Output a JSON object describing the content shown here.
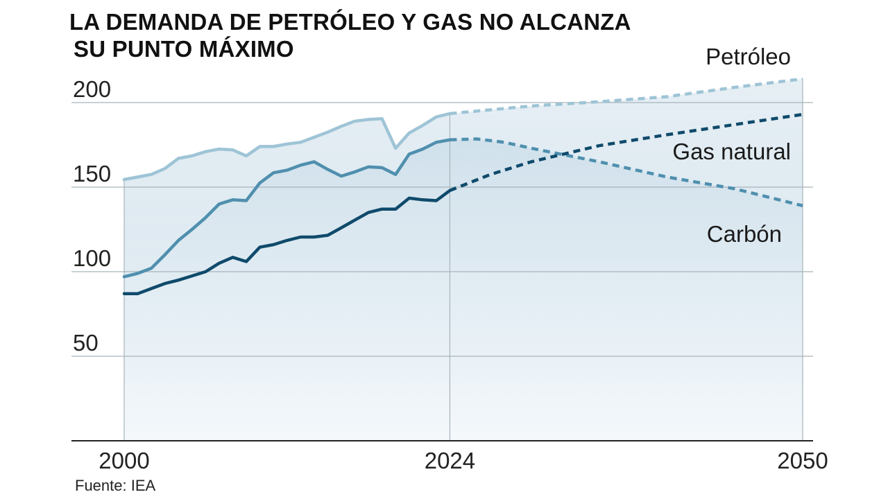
{
  "title_line1": "LA DEMANDA DE PETRÓLEO Y GAS NO ALCANZA",
  "title_line2": "SU PUNTO MÁXIMO",
  "source": "Fuente: IEA",
  "colors": {
    "petroleo": "#9ec4d6",
    "gas": "#4f8fae",
    "carbon": "#0f4a6b",
    "grid": "#a7b3bb",
    "axis": "#222222",
    "fill_top": "#c9dce8",
    "fill_bottom": "#f4f8fb"
  },
  "chart_data": {
    "type": "line",
    "title": "LA DEMANDA DE PETRÓLEO Y GAS NO ALCANZA SU PUNTO MÁXIMO",
    "xlabel": "",
    "ylabel": "",
    "xlim": [
      2000,
      2050
    ],
    "ylim": [
      0,
      200
    ],
    "yticks": [
      50,
      100,
      150,
      200
    ],
    "xticks": [
      2000,
      2024,
      2050
    ],
    "grid": true,
    "projection_start": 2024,
    "series": [
      {
        "name": "Petróleo",
        "key": "petroleo",
        "x": [
          2000,
          2001,
          2002,
          2003,
          2004,
          2005,
          2006,
          2007,
          2008,
          2009,
          2010,
          2011,
          2012,
          2013,
          2014,
          2015,
          2016,
          2017,
          2018,
          2019,
          2020,
          2021,
          2022,
          2023,
          2024
        ],
        "values": [
          154.5,
          156,
          157.5,
          161,
          167,
          168.5,
          171,
          172.5,
          172,
          168.5,
          174,
          174,
          175.5,
          176.5,
          179.5,
          182.5,
          186,
          189,
          190,
          190.5,
          173,
          182,
          186.5,
          191.5,
          193.5
        ],
        "proj_x": [
          2024,
          2030,
          2035,
          2040,
          2045,
          2050
        ],
        "proj_values": [
          193.5,
          198,
          200.5,
          203.5,
          209,
          214
        ]
      },
      {
        "name": "Gas natural",
        "key": "gas",
        "x": [
          2000,
          2001,
          2002,
          2003,
          2004,
          2005,
          2006,
          2007,
          2008,
          2009,
          2010,
          2011,
          2012,
          2013,
          2014,
          2015,
          2016,
          2017,
          2018,
          2019,
          2020,
          2021,
          2022,
          2023,
          2024
        ],
        "values": [
          97,
          99,
          102,
          110,
          118.5,
          125,
          132,
          140,
          142.5,
          142,
          152.5,
          158.5,
          160,
          163,
          165,
          160.5,
          156.5,
          159,
          162,
          161.5,
          157.5,
          169.5,
          172.5,
          176.5,
          178
        ],
        "proj_x": [
          2024,
          2026,
          2028,
          2030,
          2035,
          2040,
          2045,
          2050
        ],
        "proj_values": [
          178,
          178.5,
          176.5,
          173,
          165,
          156,
          149,
          139
        ]
      },
      {
        "name": "Carbón",
        "key": "carbon",
        "x": [
          2000,
          2001,
          2002,
          2003,
          2004,
          2005,
          2006,
          2007,
          2008,
          2009,
          2010,
          2011,
          2012,
          2013,
          2014,
          2015,
          2016,
          2017,
          2018,
          2019,
          2020,
          2021,
          2022,
          2023,
          2024
        ],
        "values": [
          87,
          87,
          90,
          93,
          95,
          97.5,
          100,
          105,
          108.5,
          106,
          114.5,
          116,
          118.5,
          120.5,
          120.5,
          121.5,
          126,
          130.5,
          135,
          137,
          137,
          143.5,
          142.5,
          142,
          148
        ],
        "proj_x": [
          2024,
          2027,
          2030,
          2035,
          2040,
          2045,
          2050
        ],
        "proj_values": [
          148,
          157.5,
          165,
          174.5,
          181,
          187,
          193
        ]
      }
    ],
    "labels": [
      {
        "text": "Petróleo",
        "key": "petroleo"
      },
      {
        "text": "Gas natural",
        "key": "gas"
      },
      {
        "text": "Carbón",
        "key": "carbon"
      }
    ]
  }
}
